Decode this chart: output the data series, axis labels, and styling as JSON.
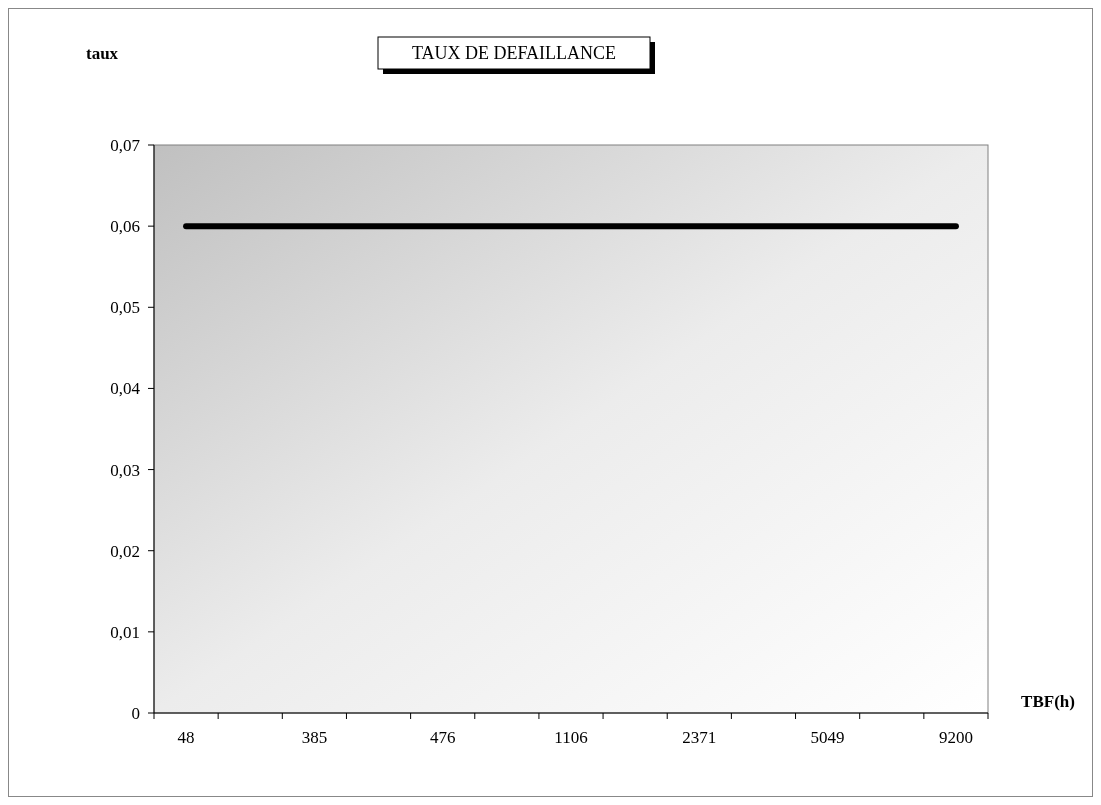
{
  "chart_data": {
    "type": "line",
    "title": "TAUX DE DEFAILLANCE",
    "xlabel": "TBF(h)",
    "ylabel": "taux",
    "categories": [
      "48",
      null,
      "385",
      null,
      "476",
      null,
      "1106",
      null,
      "2371",
      null,
      "5049",
      null,
      "9200"
    ],
    "series": [
      {
        "color": "#000000",
        "values": [
          0.06,
          0.06,
          0.06,
          0.06,
          0.06,
          0.06,
          0.06,
          0.06,
          0.06,
          0.06,
          0.06,
          0.06,
          0.06
        ]
      }
    ],
    "ylim": [
      0,
      0.07
    ],
    "yticks": [
      {
        "value": 0,
        "label": "0"
      },
      {
        "value": 0.01,
        "label": "0,01"
      },
      {
        "value": 0.02,
        "label": "0,02"
      },
      {
        "value": 0.03,
        "label": "0,03"
      },
      {
        "value": 0.04,
        "label": "0,04"
      },
      {
        "value": 0.05,
        "label": "0,05"
      },
      {
        "value": 0.06,
        "label": "0,06"
      },
      {
        "value": 0.07,
        "label": "0,07"
      }
    ],
    "grid": false,
    "marker": "none",
    "line_style": "solid"
  }
}
